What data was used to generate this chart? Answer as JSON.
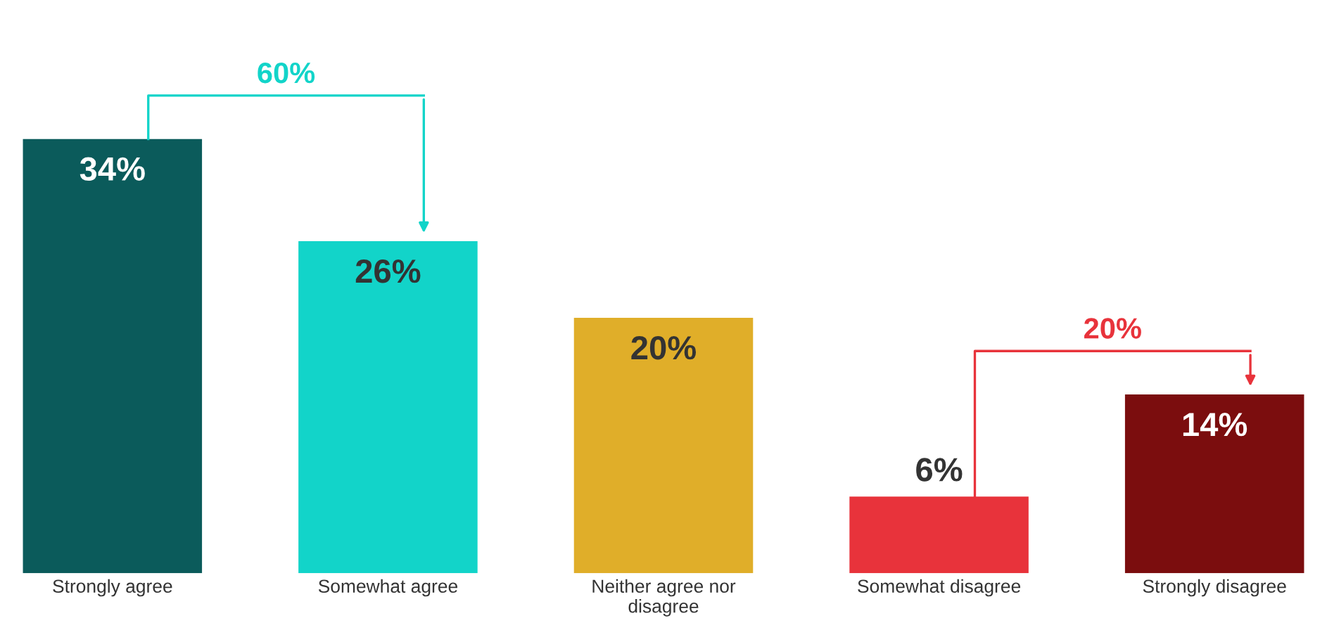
{
  "chart_data": {
    "type": "bar",
    "categories": [
      "Strongly agree",
      "Somewhat agree",
      "Neither agree nor\ndisagree",
      "Somewhat disagree",
      "Strongly disagree"
    ],
    "values": [
      34,
      26,
      20,
      6,
      14
    ],
    "colors": [
      "#0b5b5b",
      "#12d4c9",
      "#e0ae29",
      "#e8333b",
      "#7b0d0e"
    ],
    "value_labels": [
      "34%",
      "26%",
      "20%",
      "6%",
      "14%"
    ],
    "annotations": [
      "60%",
      "20%"
    ],
    "grid": false
  }
}
